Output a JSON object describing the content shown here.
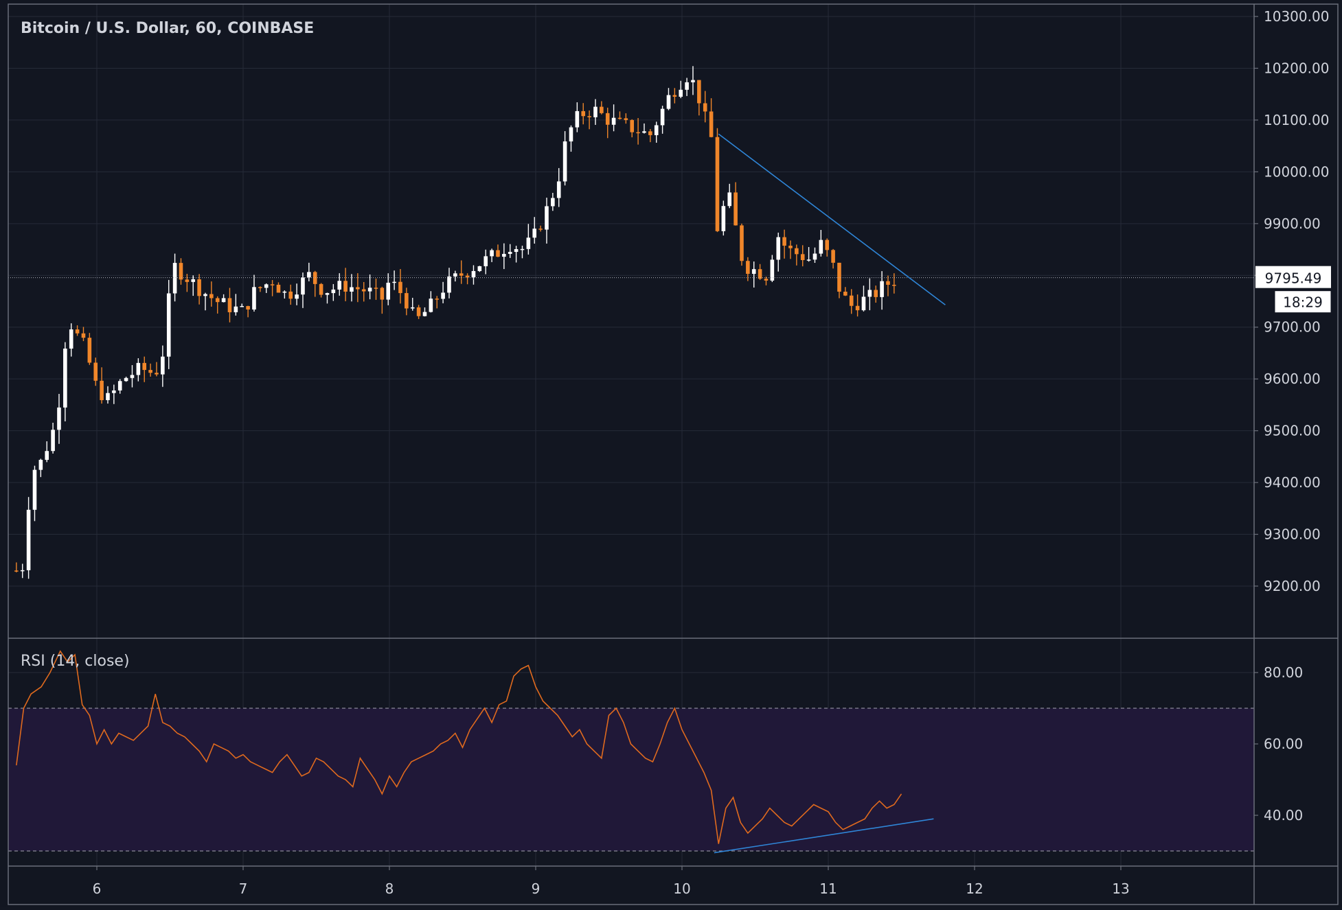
{
  "header": {
    "symbol_title": "Bitcoin / U.S. Dollar, 60, COINBASE",
    "rsi_title": "RSI (14, close)"
  },
  "colors": {
    "background": "#121621",
    "grid": "#262b38",
    "border": "#6b6f7a",
    "up_candle": "#ffffff",
    "down_candle": "#f0862a",
    "rsi_line": "#e06a1e",
    "rsi_band": "#201838",
    "trendline": "#2f86d8",
    "text": "#d1d4dc"
  },
  "chart_data": [
    {
      "type": "candlestick",
      "title": "Bitcoin / U.S. Dollar, 60, COINBASE",
      "x_axis": {
        "ticks": [
          "6",
          "7",
          "8",
          "9",
          "10",
          "11",
          "12",
          "13"
        ],
        "range_days": [
          5.45,
          13.9
        ]
      },
      "y_axis": {
        "ticks": [
          "10300.00",
          "10200.00",
          "10100.00",
          "10000.00",
          "9900.00",
          "9800.00",
          "9700.00",
          "9600.00",
          "9500.00",
          "9400.00",
          "9300.00",
          "9200.00"
        ],
        "range": [
          9110,
          10315
        ]
      },
      "grid": true,
      "last_price": {
        "value": "9795.49",
        "countdown": "18:29"
      },
      "candle_anchors": [
        [
          5.45,
          9230
        ],
        [
          5.5,
          9240
        ],
        [
          5.55,
          9420
        ],
        [
          5.62,
          9440
        ],
        [
          5.7,
          9500
        ],
        [
          5.75,
          9570
        ],
        [
          5.8,
          9720
        ],
        [
          5.85,
          9690
        ],
        [
          5.92,
          9660
        ],
        [
          6.0,
          9580
        ],
        [
          6.08,
          9560
        ],
        [
          6.18,
          9600
        ],
        [
          6.3,
          9620
        ],
        [
          6.4,
          9610
        ],
        [
          6.45,
          9650
        ],
        [
          6.52,
          9820
        ],
        [
          6.6,
          9800
        ],
        [
          6.72,
          9770
        ],
        [
          6.82,
          9750
        ],
        [
          6.9,
          9740
        ],
        [
          7.0,
          9730
        ],
        [
          7.08,
          9770
        ],
        [
          7.2,
          9790
        ],
        [
          7.3,
          9760
        ],
        [
          7.45,
          9800
        ],
        [
          7.55,
          9770
        ],
        [
          7.7,
          9780
        ],
        [
          7.85,
          9770
        ],
        [
          7.95,
          9755
        ],
        [
          8.0,
          9790
        ],
        [
          8.1,
          9760
        ],
        [
          8.18,
          9710
        ],
        [
          8.28,
          9740
        ],
        [
          8.38,
          9780
        ],
        [
          8.48,
          9800
        ],
        [
          8.6,
          9820
        ],
        [
          8.72,
          9840
        ],
        [
          8.82,
          9860
        ],
        [
          8.92,
          9850
        ],
        [
          9.0,
          9880
        ],
        [
          9.08,
          9930
        ],
        [
          9.15,
          9980
        ],
        [
          9.2,
          10050
        ],
        [
          9.25,
          10090
        ],
        [
          9.3,
          10110
        ],
        [
          9.4,
          10120
        ],
        [
          9.5,
          10100
        ],
        [
          9.6,
          10090
        ],
        [
          9.7,
          10080
        ],
        [
          9.78,
          10070
        ],
        [
          9.85,
          10110
        ],
        [
          9.92,
          10150
        ],
        [
          9.98,
          10170
        ],
        [
          10.05,
          10190
        ],
        [
          10.12,
          10140
        ],
        [
          10.18,
          10080
        ],
        [
          10.22,
          10050
        ],
        [
          10.25,
          9830
        ],
        [
          10.3,
          9980
        ],
        [
          10.36,
          9900
        ],
        [
          10.42,
          9820
        ],
        [
          10.5,
          9810
        ],
        [
          10.58,
          9800
        ],
        [
          10.65,
          9880
        ],
        [
          10.72,
          9850
        ],
        [
          10.8,
          9840
        ],
        [
          10.88,
          9830
        ],
        [
          10.95,
          9860
        ],
        [
          11.02,
          9830
        ],
        [
          11.08,
          9770
        ],
        [
          11.15,
          9740
        ],
        [
          11.22,
          9750
        ],
        [
          11.3,
          9760
        ],
        [
          11.38,
          9780
        ],
        [
          11.48,
          9795.49
        ]
      ],
      "annotations": [
        {
          "type": "trendline",
          "from": [
            10.25,
            10073
          ],
          "to": [
            11.8,
            9743
          ]
        }
      ]
    },
    {
      "type": "line",
      "title": "RSI (14, close)",
      "y_axis": {
        "ticks": [
          "80.00",
          "60.00",
          "40.00"
        ],
        "range": [
          25,
          90
        ]
      },
      "bands": [
        30,
        70
      ],
      "series": [
        {
          "x": [
            5.45,
            5.5,
            5.55,
            5.62,
            5.68,
            5.75,
            5.8,
            5.85,
            5.9,
            5.95,
            6.0,
            6.05,
            6.1,
            6.15,
            6.2,
            6.25,
            6.3,
            6.35,
            6.4,
            6.45,
            6.5,
            6.55,
            6.6,
            6.65,
            6.7,
            6.75,
            6.8,
            6.85,
            6.9,
            6.95,
            7.0,
            7.05,
            7.1,
            7.15,
            7.2,
            7.25,
            7.3,
            7.35,
            7.4,
            7.45,
            7.5,
            7.55,
            7.6,
            7.65,
            7.7,
            7.75,
            7.8,
            7.85,
            7.9,
            7.95,
            8.0,
            8.05,
            8.1,
            8.15,
            8.2,
            8.25,
            8.3,
            8.35,
            8.4,
            8.45,
            8.5,
            8.55,
            8.6,
            8.65,
            8.7,
            8.75,
            8.8,
            8.85,
            8.9,
            8.95,
            9.0,
            9.05,
            9.1,
            9.15,
            9.2,
            9.25,
            9.3,
            9.35,
            9.4,
            9.45,
            9.5,
            9.55,
            9.6,
            9.65,
            9.7,
            9.75,
            9.8,
            9.85,
            9.9,
            9.95,
            10.0,
            10.05,
            10.1,
            10.15,
            10.2,
            10.25,
            10.3,
            10.35,
            10.4,
            10.45,
            10.5,
            10.55,
            10.6,
            10.65,
            10.7,
            10.75,
            10.8,
            10.85,
            10.9,
            10.95,
            11.0,
            11.05,
            11.1,
            11.15,
            11.2,
            11.25,
            11.3,
            11.35,
            11.4,
            11.45,
            11.5
          ],
          "values": [
            54,
            70,
            74,
            76,
            80,
            86,
            83,
            85,
            71,
            68,
            60,
            64,
            60,
            63,
            62,
            61,
            63,
            65,
            74,
            66,
            65,
            63,
            62,
            60,
            58,
            55,
            60,
            59,
            58,
            56,
            57,
            55,
            54,
            53,
            52,
            55,
            57,
            54,
            51,
            52,
            56,
            55,
            53,
            51,
            50,
            48,
            56,
            53,
            50,
            46,
            51,
            48,
            52,
            55,
            56,
            57,
            58,
            60,
            61,
            63,
            59,
            64,
            67,
            70,
            66,
            71,
            72,
            79,
            81,
            82,
            76,
            72,
            70,
            68,
            65,
            62,
            64,
            60,
            58,
            56,
            68,
            70,
            66,
            60,
            58,
            56,
            55,
            60,
            66,
            70,
            64,
            60,
            56,
            52,
            47,
            32,
            42,
            45,
            38,
            35,
            37,
            39,
            42,
            40,
            38,
            37,
            39,
            41,
            43,
            42,
            41,
            38,
            36,
            37,
            38,
            39,
            42,
            44,
            42,
            43,
            46
          ]
        }
      ],
      "annotations": [
        {
          "type": "trendline",
          "from": [
            10.22,
            29.5
          ],
          "to": [
            11.72,
            39
          ]
        }
      ]
    }
  ]
}
